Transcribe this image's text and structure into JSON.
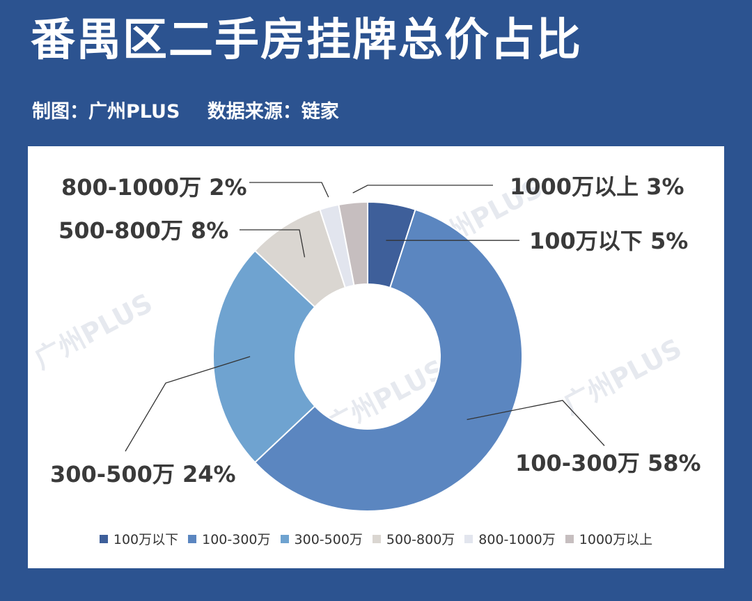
{
  "header": {
    "title": "番禺区二手房挂牌总价占比",
    "credit_maker": "制图：广州PLUS",
    "credit_source": "数据来源：链家"
  },
  "watermark": "广州PLUS",
  "chart_data": {
    "type": "pie",
    "donut": true,
    "start_angle_deg": 0,
    "direction": "clockwise",
    "legend_position": "bottom",
    "categories": [
      "100万以下",
      "100-300万",
      "300-500万",
      "500-800万",
      "800-1000万",
      "1000万以上"
    ],
    "values": [
      5,
      58,
      24,
      8,
      2,
      3
    ],
    "unit": "%",
    "colors": [
      "#3e5f9a",
      "#5b86c0",
      "#6fa3d0",
      "#dad6d1",
      "#e2e5ee",
      "#c6bebf"
    ],
    "data_labels": [
      "100万以下  5%",
      "100-300万  58%",
      "300-500万  24%",
      "500-800万  8%",
      "800-1000万  2%",
      "1000万以上  3%"
    ]
  }
}
